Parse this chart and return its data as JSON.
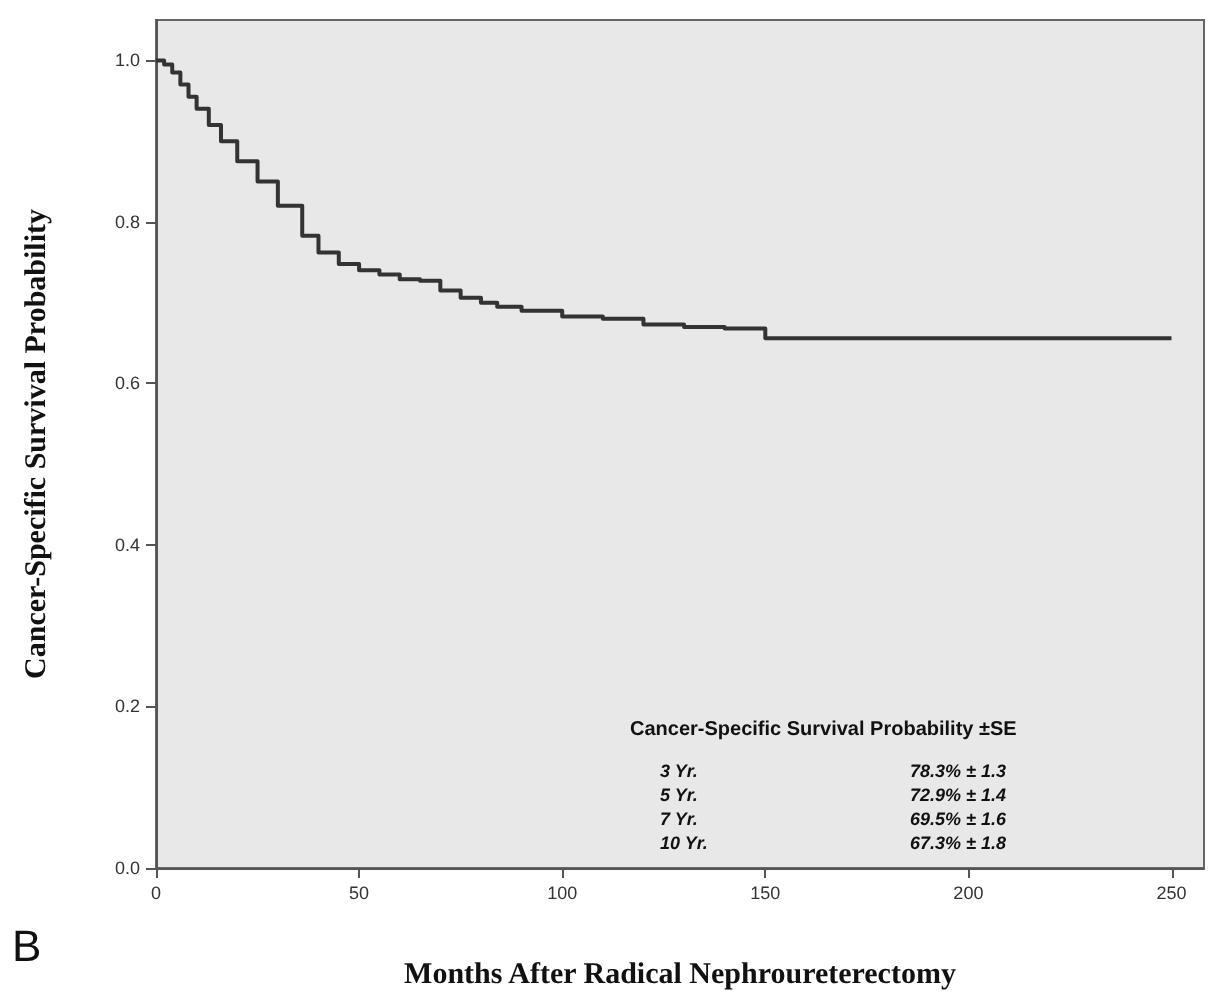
{
  "chart_data": {
    "type": "step",
    "xlabel": "Months After Radical Nephroureterectomy",
    "ylabel": "Cancer-Specific Survival Probability",
    "x": [
      0,
      2,
      4,
      6,
      8,
      10,
      13,
      16,
      20,
      25,
      30,
      36,
      40,
      45,
      50,
      55,
      60,
      65,
      70,
      75,
      80,
      84,
      90,
      100,
      110,
      120,
      130,
      140,
      150,
      250
    ],
    "values": [
      1.0,
      0.995,
      0.985,
      0.97,
      0.955,
      0.94,
      0.92,
      0.9,
      0.875,
      0.85,
      0.82,
      0.783,
      0.762,
      0.748,
      0.74,
      0.735,
      0.729,
      0.727,
      0.715,
      0.706,
      0.7,
      0.695,
      0.69,
      0.683,
      0.68,
      0.673,
      0.67,
      0.668,
      0.656,
      0.656
    ],
    "color": "#333333",
    "xlim": [
      0,
      258
    ],
    "xticks": [
      0,
      50,
      100,
      150,
      200,
      250
    ],
    "ylim": [
      0,
      1.05
    ],
    "yticks": [
      {
        "value": 0,
        "label": "0.0"
      },
      0.2,
      0.4,
      0.6,
      0.8,
      {
        "value": 1,
        "label": "1.0"
      }
    ],
    "grid": false,
    "marker": "none",
    "line_style": "solid",
    "annotations": [
      "Cancer-Specific Survival Probability ±SE",
      "3 Yr.",
      "78.3% ± 1.3",
      "5 Yr.",
      "72.9% ± 1.4",
      "7 Yr.",
      "69.5% ± 1.6",
      "10 Yr.",
      "67.3% ± 1.8",
      "B"
    ]
  }
}
